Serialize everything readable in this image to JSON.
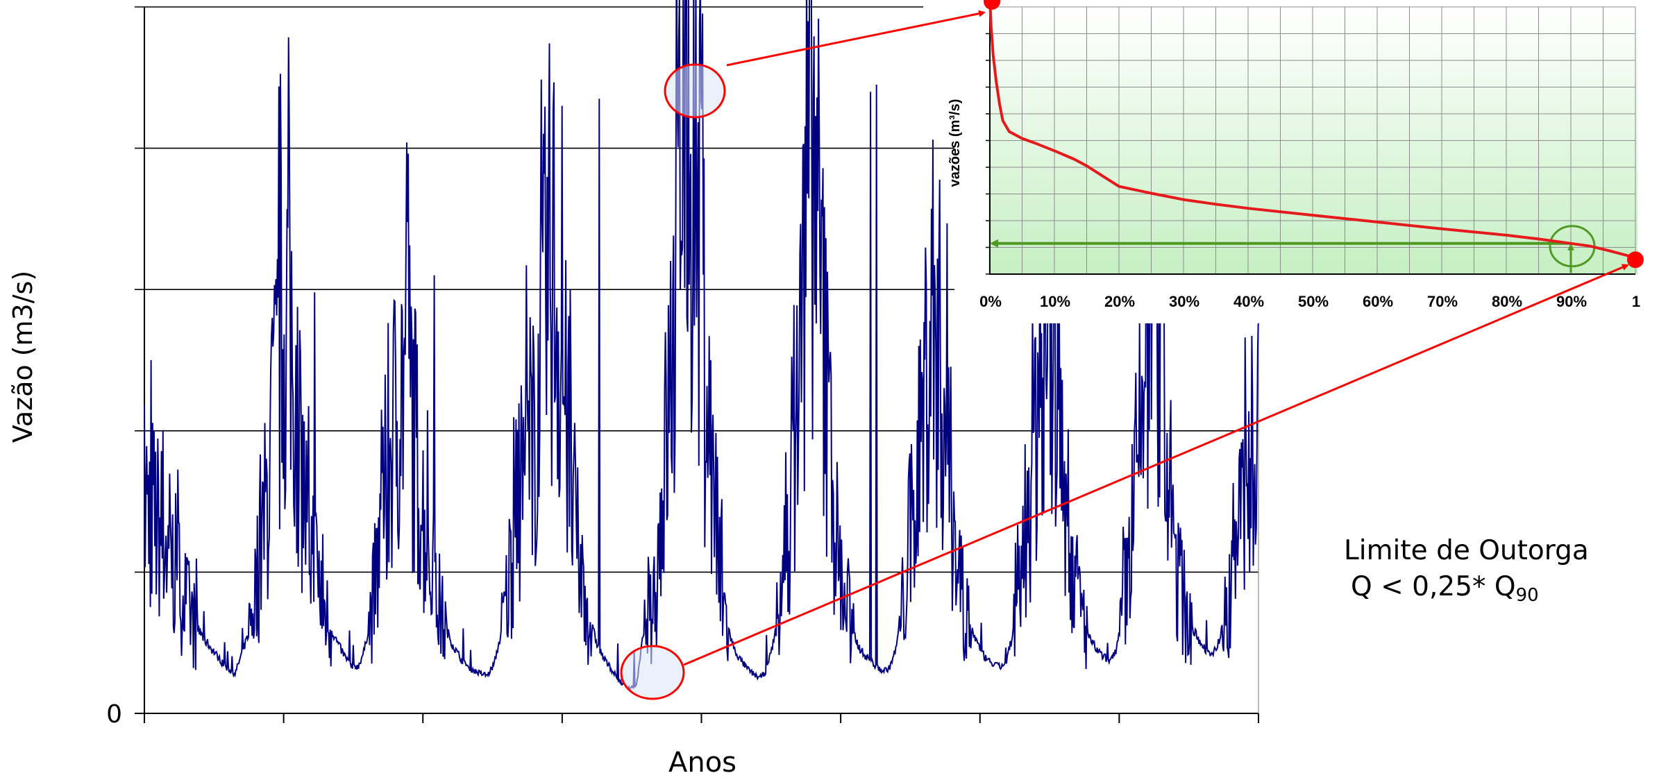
{
  "colors": {
    "main_series": "#000080",
    "inset_curve": "#e41a1c",
    "q90_marker": "#4f9a23",
    "callout": "#ff0000",
    "callout_fill": "#dbe5f5",
    "inset_bg_top": "#ffffff",
    "inset_bg_bottom": "#c6efc3",
    "inset_grid": "#8c8c8c"
  },
  "chart_data": [
    {
      "type": "line",
      "title": "",
      "xlabel": "Anos",
      "ylabel": "Vazão (m3/s)",
      "y_tick_labels": [
        "0"
      ],
      "ylim": [
        0,
        5
      ],
      "x_ticks": 9,
      "grid": "horizontal",
      "series": [
        {
          "values": [
            1.55,
            1.48,
            1.36,
            1.3,
            1.14,
            1.02,
            0.86,
            0.72,
            0.62,
            0.54,
            0.48,
            0.42,
            0.36,
            0.31,
            0.28,
            0.42,
            0.55,
            0.86,
            1.15,
            1.6,
            2.1,
            2.62,
            2.95,
            2.6,
            1.92,
            1.42,
            1.18,
            0.92,
            0.72,
            0.58,
            0.48,
            0.4,
            0.34,
            0.33,
            0.45,
            0.72,
            1.05,
            1.55,
            1.92,
            2.2,
            2.5,
            2.38,
            1.9,
            1.45,
            1.15,
            0.88,
            0.68,
            0.55,
            0.45,
            0.38,
            0.33,
            0.3,
            0.28,
            0.27,
            0.35,
            0.55,
            0.85,
            1.32,
            1.62,
            1.82,
            2.05,
            2.32,
            3.02,
            3.38,
            2.72,
            2.22,
            1.6,
            1.12,
            0.85,
            0.62,
            0.48,
            0.38,
            0.32,
            0.25,
            0.2,
            0.18,
            0.2,
            0.55,
            0.68,
            0.95,
            1.62,
            2.25,
            2.88,
            4.35,
            4.55,
            3.92,
            3.05,
            2.2,
            1.5,
            0.95,
            0.62,
            0.46,
            0.38,
            0.32,
            0.28,
            0.25,
            0.3,
            0.48,
            0.72,
            1.15,
            1.8,
            2.45,
            3.28,
            4.35,
            3.3,
            2.55,
            1.82,
            1.2,
            0.85,
            0.65,
            0.5,
            0.42,
            0.38,
            0.33,
            0.3,
            0.32,
            0.45,
            0.75,
            1.15,
            1.6,
            2.05,
            2.68,
            2.95,
            2.45,
            1.9,
            1.38,
            0.95,
            0.7,
            0.55,
            0.45,
            0.38,
            0.35,
            0.33,
            0.35,
            0.55,
            0.85,
            1.35,
            1.85,
            2.35,
            2.82,
            2.95,
            2.3,
            1.72,
            1.22,
            0.88,
            0.68,
            0.52,
            0.45,
            0.4,
            0.38,
            0.45,
            0.7,
            1.12,
            1.62,
            2.1,
            2.7,
            2.9,
            2.3,
            1.72,
            1.22,
            0.88,
            0.7,
            0.58,
            0.5,
            0.45,
            0.43,
            0.52,
            0.72,
            0.95,
            1.28,
            1.62,
            1.95,
            2.05
          ],
          "peaks": [
            2.8,
            2.98,
            3.1,
            4.3,
            4.35,
            3.96,
            4.4,
            4.45,
            4.48
          ]
        }
      ]
    },
    {
      "type": "line",
      "title": "",
      "ylabel": "vazões (m³/s)",
      "x_tick_labels": [
        "0%",
        "10%",
        "20%",
        "30%",
        "40%",
        "50%",
        "60%",
        "70%",
        "80%",
        "90%",
        "1"
      ],
      "xlim": [
        0,
        1
      ],
      "grid": "both",
      "background": "vertical gradient white to light green",
      "series": [
        {
          "x": [
            0,
            0.002,
            0.005,
            0.01,
            0.015,
            0.02,
            0.03,
            0.05,
            0.07,
            0.1,
            0.13,
            0.15,
            0.2,
            0.25,
            0.3,
            0.35,
            0.4,
            0.5,
            0.6,
            0.7,
            0.8,
            0.85,
            0.9,
            0.93,
            0.96,
            1.0
          ],
          "values": [
            10.0,
            9.0,
            8.0,
            7.0,
            6.2,
            5.6,
            5.2,
            4.95,
            4.78,
            4.5,
            4.2,
            3.95,
            3.2,
            2.95,
            2.72,
            2.55,
            2.4,
            2.15,
            1.9,
            1.65,
            1.42,
            1.28,
            1.12,
            1.02,
            0.85,
            0.6
          ]
        }
      ],
      "markers": {
        "q90_percent": 0.9,
        "q90_value": 1.12
      }
    }
  ],
  "annotation": {
    "line1": "Limite de Outorga",
    "line2_prefix": "Q < 0,25* Q",
    "line2_sub": "90"
  }
}
